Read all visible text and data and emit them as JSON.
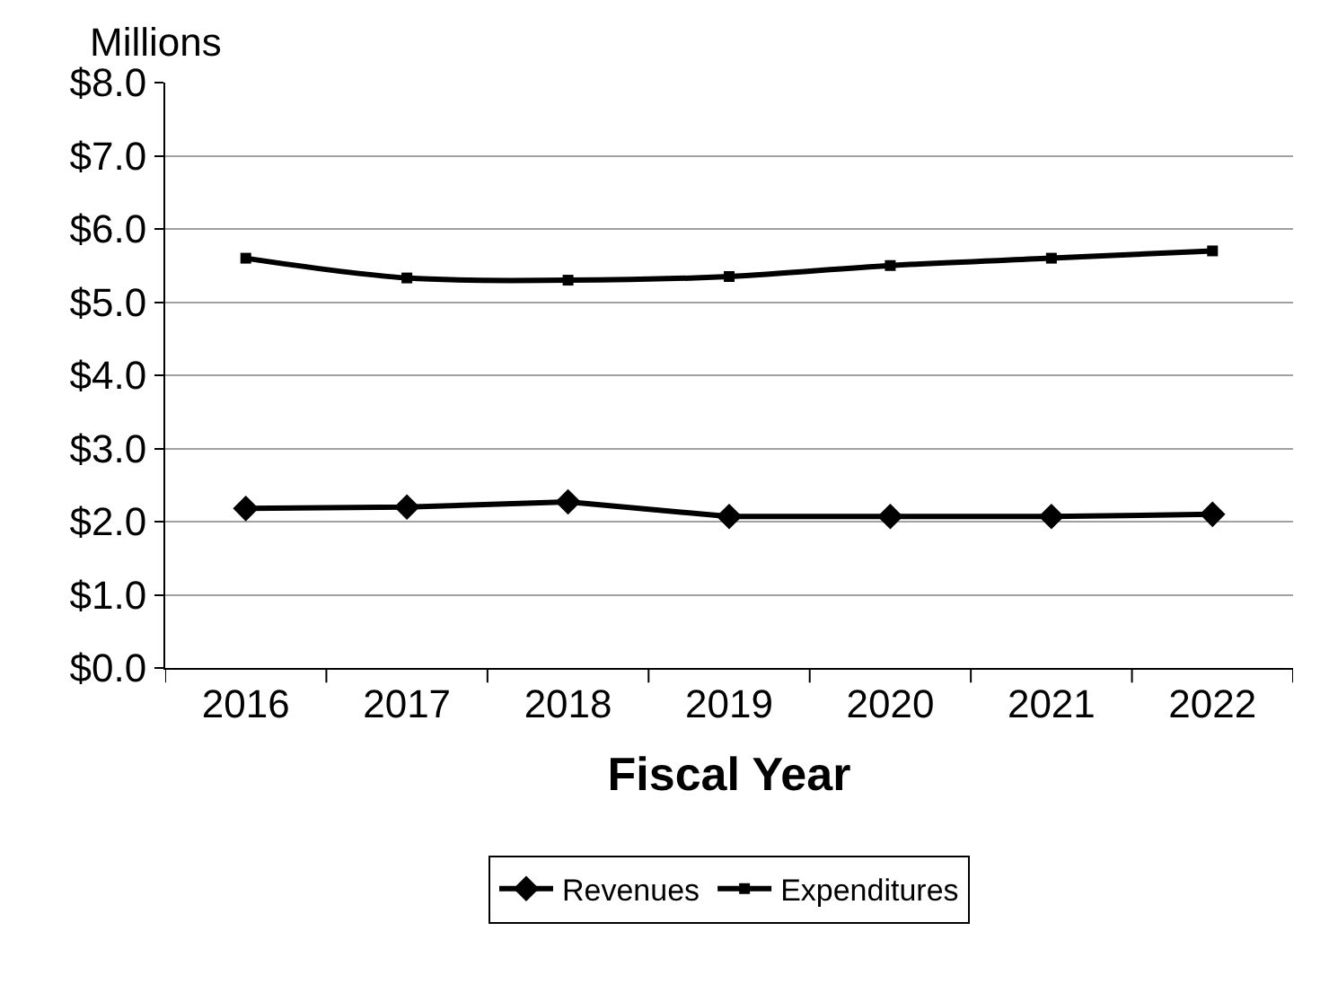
{
  "chart_data": {
    "type": "line",
    "ylabel": "Millions",
    "xlabel": "Fiscal Year",
    "categories": [
      "2016",
      "2017",
      "2018",
      "2019",
      "2020",
      "2021",
      "2022"
    ],
    "series": [
      {
        "name": "Revenues",
        "color": "#000000",
        "marker": "diamond",
        "values": [
          2.18,
          2.2,
          2.27,
          2.07,
          2.07,
          2.07,
          2.1
        ]
      },
      {
        "name": "Expenditures",
        "color": "#000000",
        "marker": "square",
        "values": [
          5.6,
          5.33,
          5.3,
          5.35,
          5.5,
          5.6,
          5.7
        ]
      }
    ],
    "ylim": [
      0,
      8
    ],
    "yticks": [
      {
        "value": 0,
        "label": "$0.0"
      },
      {
        "value": 1,
        "label": "$1.0"
      },
      {
        "value": 2,
        "label": "$2.0"
      },
      {
        "value": 3,
        "label": "$3.0"
      },
      {
        "value": 4,
        "label": "$4.0"
      },
      {
        "value": 5,
        "label": "$5.0"
      },
      {
        "value": 6,
        "label": "$6.0"
      },
      {
        "value": 7,
        "label": "$7.0"
      },
      {
        "value": 8,
        "label": "$8.0"
      }
    ],
    "grid": "y",
    "legend": "bottom",
    "line_style": "solid"
  }
}
